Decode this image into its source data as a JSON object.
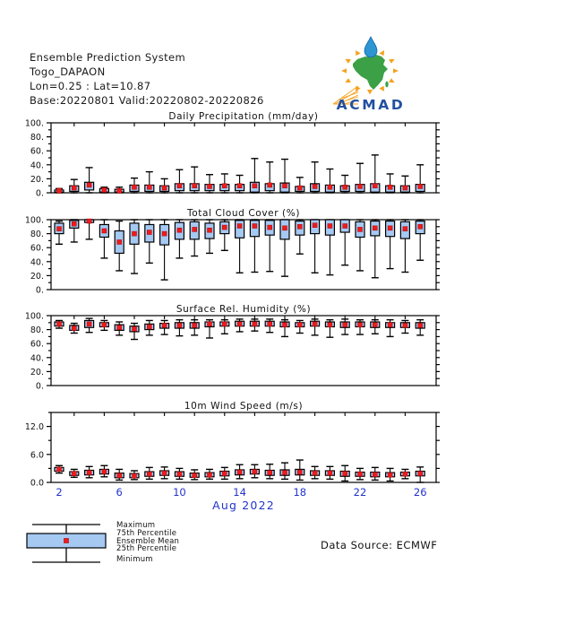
{
  "header": {
    "line1": "Ensemble Prediction System",
    "line2": "Togo_DAPAON",
    "line3": "Lon=0.25 : Lat=10.87",
    "line4": "Base:20220801 Valid:20220802-20220826"
  },
  "logo": {
    "text": "ACMAD"
  },
  "footer": {
    "data_source": "Data Source: ECMWF"
  },
  "legend": {
    "items": [
      "Maximum",
      "75th Percentile",
      "Ensemble Mean",
      "25th Percentile",
      "Minimum"
    ]
  },
  "colors": {
    "box_fill": "#A6C9F2",
    "box_border": "#000000",
    "mean_marker": "#EE1C1C",
    "mean_marker_edge": "#B00000",
    "axis": "#000000",
    "text": "#111111",
    "day_label": "#2233CC",
    "logo_orange": "#F5A11C",
    "logo_green": "#3BA046",
    "logo_blue": "#2350A0",
    "logo_drop": "#2D96D2",
    "logo_drop_edge": "#1565A8"
  },
  "xaxis": {
    "days": [
      2,
      3,
      4,
      5,
      6,
      7,
      8,
      9,
      10,
      11,
      12,
      13,
      14,
      15,
      16,
      17,
      18,
      19,
      20,
      21,
      22,
      23,
      24,
      25,
      26
    ],
    "labeled_days": [
      2,
      6,
      10,
      14,
      18,
      22,
      26
    ],
    "month_label": "Aug 2022"
  },
  "chart_data": [
    {
      "type": "boxplot",
      "title": "Daily Precipitation (mm/day)",
      "ylim": [
        0,
        100
      ],
      "minor_step": 10,
      "yticks": [
        {
          "v": 0,
          "label": "0."
        },
        {
          "v": 20,
          "label": "20."
        },
        {
          "v": 40,
          "label": "40."
        },
        {
          "v": 60,
          "label": "60."
        },
        {
          "v": 80,
          "label": "80."
        },
        {
          "v": 100,
          "label": "100."
        }
      ],
      "show_xaxis_labels": false,
      "q25": [
        1,
        2,
        4,
        1,
        1,
        2,
        2,
        2,
        3,
        3,
        3,
        3,
        3,
        1,
        3,
        1,
        2,
        2,
        1,
        2,
        2,
        1,
        1,
        1,
        2
      ],
      "q75": [
        4,
        10,
        15,
        6,
        5,
        11,
        11,
        10,
        13,
        13,
        12,
        12,
        12,
        15,
        13,
        14,
        9,
        13,
        11,
        10,
        12,
        13,
        10,
        10,
        12
      ],
      "mean": [
        3,
        7,
        11,
        4,
        3,
        8,
        8,
        7,
        10,
        10,
        9,
        10,
        10,
        10,
        11,
        10,
        7,
        9,
        8,
        8,
        9,
        10,
        8,
        7,
        9
      ],
      "min": [
        0,
        0,
        0,
        0,
        0,
        0,
        0,
        0,
        0,
        0,
        0,
        0,
        0,
        0,
        0,
        0,
        0,
        0,
        0,
        0,
        0,
        0,
        0,
        0,
        0
      ],
      "max": [
        6,
        19,
        36,
        8,
        8,
        21,
        30,
        20,
        33,
        37,
        26,
        27,
        25,
        49,
        44,
        48,
        22,
        44,
        34,
        25,
        42,
        54,
        27,
        24,
        40
      ]
    },
    {
      "type": "boxplot",
      "title": "Total Cloud Cover (%)",
      "ylim": [
        0,
        100
      ],
      "minor_step": 10,
      "yticks": [
        {
          "v": 0,
          "label": "0."
        },
        {
          "v": 20,
          "label": "20."
        },
        {
          "v": 40,
          "label": "40."
        },
        {
          "v": 60,
          "label": "60."
        },
        {
          "v": 80,
          "label": "80."
        },
        {
          "v": 100,
          "label": "100."
        }
      ],
      "show_xaxis_labels": false,
      "q25": [
        80,
        88,
        96,
        75,
        52,
        65,
        68,
        64,
        72,
        72,
        73,
        80,
        74,
        76,
        78,
        72,
        78,
        80,
        78,
        82,
        75,
        77,
        76,
        73,
        80
      ],
      "q75": [
        95,
        99,
        100,
        93,
        84,
        95,
        93,
        93,
        96,
        97,
        95,
        97,
        99,
        99,
        99,
        100,
        98,
        100,
        100,
        100,
        97,
        98,
        98,
        97,
        98
      ],
      "mean": [
        87,
        94,
        98,
        84,
        68,
        80,
        82,
        80,
        85,
        86,
        85,
        89,
        91,
        91,
        89,
        88,
        90,
        92,
        91,
        91,
        86,
        88,
        88,
        87,
        90
      ],
      "min": [
        65,
        68,
        72,
        45,
        27,
        23,
        38,
        14,
        45,
        48,
        52,
        56,
        24,
        25,
        26,
        19,
        51,
        24,
        21,
        35,
        27,
        17,
        30,
        25,
        42
      ],
      "max": [
        98,
        100,
        100,
        100,
        98,
        100,
        100,
        100,
        100,
        100,
        100,
        100,
        100,
        100,
        100,
        100,
        100,
        100,
        100,
        100,
        100,
        100,
        100,
        100,
        100
      ]
    },
    {
      "type": "boxplot",
      "title": "Surface Rel. Humidity (%)",
      "ylim": [
        0,
        100
      ],
      "minor_step": 10,
      "yticks": [
        {
          "v": 0,
          "label": "0."
        },
        {
          "v": 20,
          "label": "20."
        },
        {
          "v": 40,
          "label": "40."
        },
        {
          "v": 60,
          "label": "60."
        },
        {
          "v": 80,
          "label": "80."
        },
        {
          "v": 100,
          "label": "100."
        }
      ],
      "show_xaxis_labels": false,
      "q25": [
        85,
        79,
        83,
        84,
        79,
        77,
        80,
        82,
        82,
        82,
        84,
        85,
        85,
        85,
        85,
        84,
        84,
        85,
        84,
        83,
        84,
        83,
        83,
        83,
        82
      ],
      "q75": [
        91,
        86,
        93,
        90,
        87,
        85,
        88,
        89,
        90,
        90,
        91,
        91,
        92,
        92,
        92,
        91,
        90,
        92,
        91,
        91,
        91,
        91,
        90,
        90,
        90
      ],
      "mean": [
        88,
        82,
        88,
        87,
        83,
        81,
        84,
        86,
        86,
        86,
        88,
        88,
        88,
        88,
        88,
        87,
        87,
        88,
        87,
        87,
        87,
        87,
        87,
        86,
        86
      ],
      "min": [
        82,
        75,
        76,
        79,
        72,
        66,
        72,
        73,
        71,
        72,
        68,
        74,
        77,
        78,
        76,
        70,
        75,
        72,
        69,
        73,
        73,
        74,
        70,
        75,
        72
      ],
      "max": [
        93,
        89,
        96,
        93,
        91,
        89,
        93,
        93,
        94,
        94,
        94,
        94,
        95,
        95,
        95,
        94,
        93,
        95,
        94,
        95,
        94,
        94,
        94,
        93,
        94
      ]
    },
    {
      "type": "boxplot",
      "title": "10m Wind Speed (m/s)",
      "ylim": [
        0,
        15
      ],
      "minor_step": 3,
      "yticks": [
        {
          "v": 0,
          "label": "0.0"
        },
        {
          "v": 6,
          "label": "6.0"
        },
        {
          "v": 12,
          "label": "12.0"
        }
      ],
      "show_xaxis_labels": true,
      "q25": [
        2.4,
        1.5,
        1.6,
        1.8,
        1.0,
        1.0,
        1.3,
        1.5,
        1.3,
        1.1,
        1.2,
        1.4,
        1.6,
        1.8,
        1.5,
        1.5,
        1.6,
        1.5,
        1.5,
        1.3,
        1.3,
        1.2,
        1.2,
        1.4,
        1.4
      ],
      "q75": [
        3.2,
        2.3,
        2.6,
        2.8,
        2.0,
        1.9,
        2.3,
        2.5,
        2.3,
        2.0,
        2.1,
        2.4,
        2.7,
        2.8,
        2.6,
        2.7,
        2.8,
        2.5,
        2.5,
        2.4,
        2.2,
        2.2,
        2.1,
        2.2,
        2.4
      ],
      "mean": [
        2.8,
        1.9,
        2.1,
        2.3,
        1.5,
        1.4,
        1.8,
        2.0,
        1.8,
        1.5,
        1.6,
        1.9,
        2.2,
        2.3,
        2.1,
        2.1,
        2.2,
        2.0,
        2.0,
        1.9,
        1.8,
        1.7,
        1.6,
        1.8,
        1.9
      ],
      "min": [
        2.0,
        1.1,
        1.0,
        1.2,
        0.5,
        0.6,
        0.7,
        0.8,
        0.7,
        0.6,
        0.7,
        0.7,
        0.8,
        1.0,
        0.8,
        0.7,
        0.5,
        0.8,
        0.7,
        0.3,
        0.6,
        0.5,
        0.3,
        0.8,
        0.0
      ],
      "max": [
        3.6,
        2.8,
        3.4,
        3.6,
        2.8,
        2.5,
        3.2,
        3.3,
        3.0,
        2.7,
        2.8,
        3.2,
        3.8,
        3.8,
        3.9,
        4.2,
        4.8,
        3.4,
        3.4,
        3.6,
        3.0,
        3.2,
        3.0,
        2.8,
        3.3
      ]
    }
  ]
}
